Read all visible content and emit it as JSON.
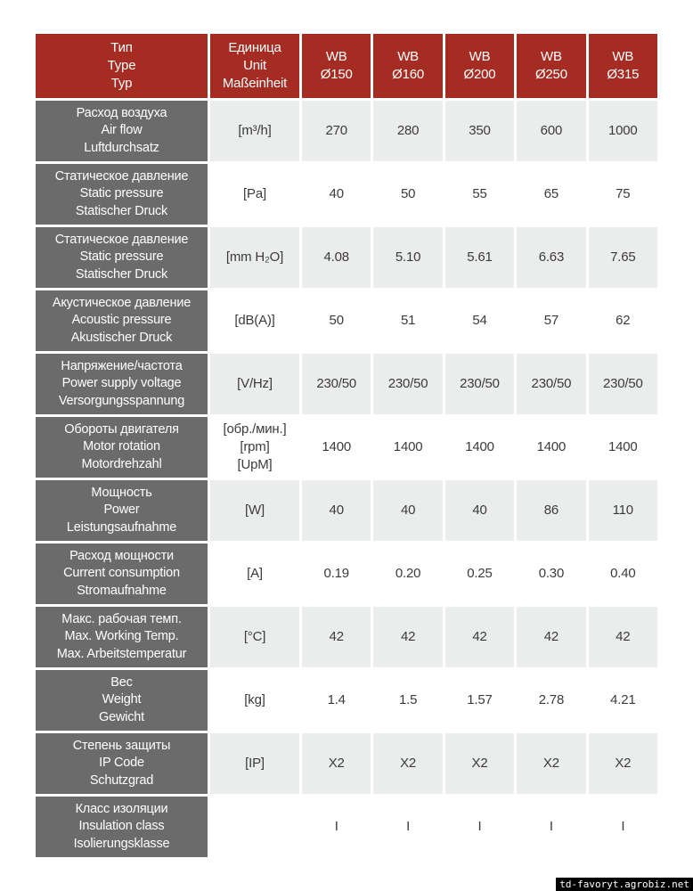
{
  "colors": {
    "header_bg": "#a52c22",
    "label_bg": "#6b6b6b",
    "row_alt_bg": "#ebecec",
    "row_plain_bg": "#ffffff",
    "header_text": "#ffffff",
    "data_text": "#3b3b3b",
    "watermark_bg": "#000000",
    "watermark_text": "#ffffff"
  },
  "header": {
    "type_label": [
      "Тип",
      "Type",
      "Typ"
    ],
    "unit_label": [
      "Единица",
      "Unit",
      "Maßeinheit"
    ],
    "models": [
      [
        "WB",
        "Ø150"
      ],
      [
        "WB",
        "Ø160"
      ],
      [
        "WB",
        "Ø200"
      ],
      [
        "WB",
        "Ø250"
      ],
      [
        "WB",
        "Ø315"
      ]
    ]
  },
  "rows": [
    {
      "label": [
        "Расход воздуха",
        "Air flow",
        "Luftdurchsatz"
      ],
      "unit": [
        "[m³/h]"
      ],
      "values": [
        "270",
        "280",
        "350",
        "600",
        "1000"
      ]
    },
    {
      "label": [
        "Статическое давление",
        "Static pressure",
        "Statischer Druck"
      ],
      "unit": [
        "[Pa]"
      ],
      "values": [
        "40",
        "50",
        "55",
        "65",
        "75"
      ]
    },
    {
      "label": [
        "Статическое давление",
        "Static pressure",
        "Statischer Druck"
      ],
      "unit": [
        "[mm H₂O]"
      ],
      "values": [
        "4.08",
        "5.10",
        "5.61",
        "6.63",
        "7.65"
      ]
    },
    {
      "label": [
        "Акустическое давление",
        "Acoustic pressure",
        "Akustischer Druck"
      ],
      "unit": [
        "[dB(A)]"
      ],
      "values": [
        "50",
        "51",
        "54",
        "57",
        "62"
      ]
    },
    {
      "label": [
        "Напряжение/частота",
        "Power supply voltage",
        "Versorgungsspannung"
      ],
      "unit": [
        "[V/Hz]"
      ],
      "values": [
        "230/50",
        "230/50",
        "230/50",
        "230/50",
        "230/50"
      ]
    },
    {
      "label": [
        "Обороты двигателя",
        "Motor rotation",
        "Motordrehzahl"
      ],
      "unit": [
        "[обр./мин.]",
        "[rpm]",
        "[UpM]"
      ],
      "values": [
        "1400",
        "1400",
        "1400",
        "1400",
        "1400"
      ]
    },
    {
      "label": [
        "Мощность",
        "Power",
        "Leistungsaufnahme"
      ],
      "unit": [
        "[W]"
      ],
      "values": [
        "40",
        "40",
        "40",
        "86",
        "110"
      ]
    },
    {
      "label": [
        "Расход мощности",
        "Current consumption",
        "Stromaufnahme"
      ],
      "unit": [
        "[A]"
      ],
      "values": [
        "0.19",
        "0.20",
        "0.25",
        "0.30",
        "0.40"
      ]
    },
    {
      "label": [
        "Макс. рабочая темп.",
        "Max. Working Temp.",
        "Max. Arbeitstemperatur"
      ],
      "unit": [
        "[°C]"
      ],
      "values": [
        "42",
        "42",
        "42",
        "42",
        "42"
      ]
    },
    {
      "label": [
        "Вес",
        "Weight",
        "Gewicht"
      ],
      "unit": [
        "[kg]"
      ],
      "values": [
        "1.4",
        "1.5",
        "1.57",
        "2.78",
        "4.21"
      ]
    },
    {
      "label": [
        "Степень защиты",
        "IP Code",
        "Schutzgrad"
      ],
      "unit": [
        "[IP]"
      ],
      "values": [
        "X2",
        "X2",
        "X2",
        "X2",
        "X2"
      ]
    },
    {
      "label": [
        "Класс изоляции",
        "Insulation class",
        "Isolierungsklasse"
      ],
      "unit": [],
      "values": [
        "I",
        "I",
        "I",
        "I",
        "I"
      ]
    }
  ],
  "watermark": "td-favoryt.agrobiz.net"
}
